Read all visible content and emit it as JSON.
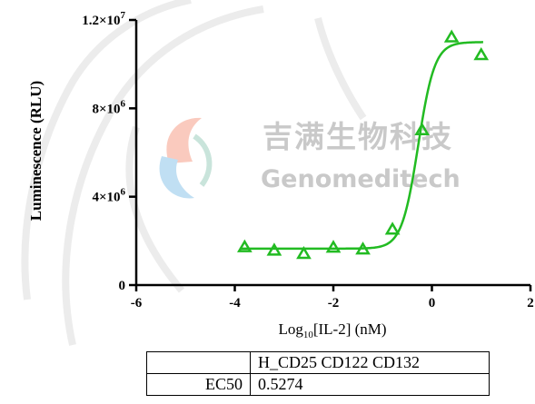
{
  "chart_data": {
    "type": "scatter",
    "xlabel_main": "Log",
    "xlabel_sub": "10",
    "xlabel_rest": "[IL-2] (nM)",
    "ylabel": "Luminescence (RLU)",
    "xlim": [
      -6,
      2
    ],
    "ylim": [
      0,
      12000000
    ],
    "x_ticks": [
      -6,
      -4,
      -2,
      0,
      2
    ],
    "x_tick_labels": [
      "-6",
      "-4",
      "-2",
      "0",
      "2"
    ],
    "y_ticks": [
      0,
      4000000,
      8000000,
      12000000
    ],
    "y_tick_labels": [
      {
        "base": "0",
        "exp": ""
      },
      {
        "base": "4×10",
        "exp": "6"
      },
      {
        "base": "8×10",
        "exp": "6"
      },
      {
        "base": "1.2×10",
        "exp": "7"
      }
    ],
    "series": [
      {
        "color": "#22bb22",
        "marker": "triangle",
        "points": [
          {
            "x": -3.8,
            "y": 1700000
          },
          {
            "x": -3.2,
            "y": 1550000
          },
          {
            "x": -2.6,
            "y": 1400000
          },
          {
            "x": -2.0,
            "y": 1680000
          },
          {
            "x": -1.4,
            "y": 1600000
          },
          {
            "x": -0.8,
            "y": 2500000
          },
          {
            "x": -0.2,
            "y": 7000000
          },
          {
            "x": 0.4,
            "y": 11200000
          },
          {
            "x": 1.0,
            "y": 10400000
          }
        ],
        "fit": {
          "model": "4PL",
          "bottom": 1650000,
          "top": 11000000,
          "log_ec50": -0.278,
          "hill": 2.6
        }
      }
    ],
    "grid": false,
    "legend": "none"
  },
  "watermark": {
    "cn": "吉满生物科技",
    "en": "Genomeditech",
    "color": "#c9c9c9"
  },
  "table": {
    "header": [
      "",
      "H_CD25 CD122 CD132"
    ],
    "rows": [
      [
        "EC50",
        "0.5274"
      ]
    ]
  }
}
